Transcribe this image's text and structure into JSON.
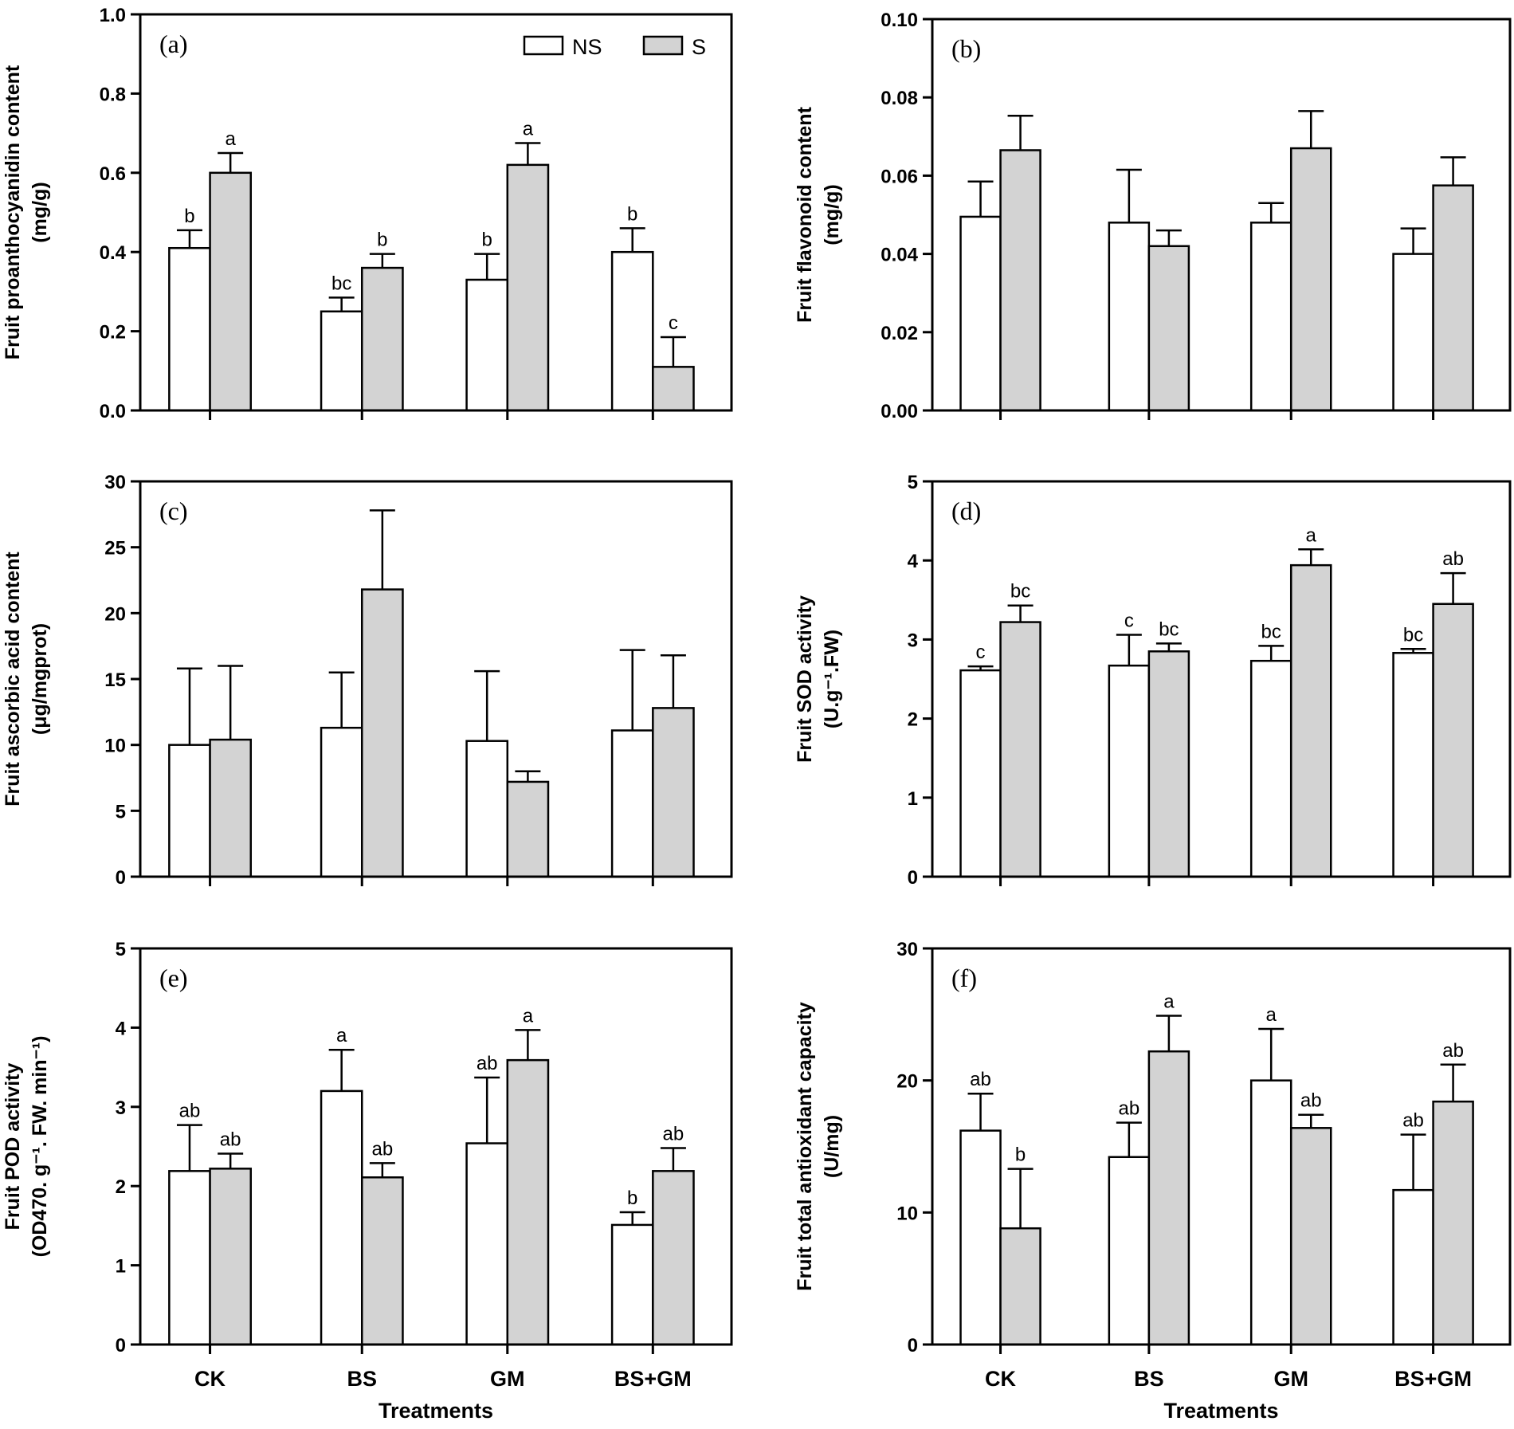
{
  "colors": {
    "NS": "#ffffff",
    "S": "#d3d3d3",
    "ink": "#000000"
  },
  "legend": {
    "entries": [
      "NS",
      "S"
    ]
  },
  "chart_data": [
    {
      "type": "bar",
      "panel": "(a)",
      "ylabel": [
        "Fruit proanthocyanidin content",
        "(mg/g)"
      ],
      "xlabel": "",
      "categories": [
        "CK",
        "BS",
        "GM",
        "BS+GM"
      ],
      "ylim": [
        0,
        1.0
      ],
      "yticks": [
        0.0,
        0.2,
        0.4,
        0.6,
        0.8,
        1.0
      ],
      "ytick_labels": [
        "0.0",
        "0.2",
        "0.4",
        "0.6",
        "0.8",
        "1.0"
      ],
      "show_category_labels": false,
      "legend": true,
      "series": [
        {
          "name": "NS",
          "values": [
            0.41,
            0.25,
            0.33,
            0.4
          ],
          "errors": [
            0.045,
            0.035,
            0.065,
            0.06
          ],
          "labels": [
            "b",
            "bc",
            "b",
            "b"
          ]
        },
        {
          "name": "S",
          "values": [
            0.6,
            0.36,
            0.62,
            0.11
          ],
          "errors": [
            0.05,
            0.035,
            0.055,
            0.075
          ],
          "labels": [
            "a",
            "b",
            "a",
            "c"
          ]
        }
      ]
    },
    {
      "type": "bar",
      "panel": "(b)",
      "ylabel": [
        "Fruit flavonoid content",
        "(mg/g)"
      ],
      "xlabel": "",
      "categories": [
        "CK",
        "BS",
        "GM",
        "BS+GM"
      ],
      "ylim": [
        0,
        0.1
      ],
      "yticks": [
        0.0,
        0.02,
        0.04,
        0.06,
        0.08,
        0.1
      ],
      "ytick_labels": [
        "0.00",
        "0.02",
        "0.04",
        "0.06",
        "0.08",
        "0.10"
      ],
      "show_category_labels": false,
      "legend": false,
      "series": [
        {
          "name": "NS",
          "values": [
            0.0495,
            0.048,
            0.048,
            0.04
          ],
          "errors": [
            0.009,
            0.0135,
            0.005,
            0.0065
          ],
          "labels": [
            "",
            "",
            "",
            ""
          ]
        },
        {
          "name": "S",
          "values": [
            0.0665,
            0.042,
            0.067,
            0.0575
          ],
          "errors": [
            0.0088,
            0.004,
            0.0095,
            0.0072
          ],
          "labels": [
            "",
            "",
            "",
            ""
          ]
        }
      ]
    },
    {
      "type": "bar",
      "panel": "(c)",
      "ylabel": [
        "Fruit ascorbic acid content",
        "(μg/mgprot)"
      ],
      "xlabel": "",
      "categories": [
        "CK",
        "BS",
        "GM",
        "BS+GM"
      ],
      "ylim": [
        0,
        30
      ],
      "yticks": [
        0,
        5,
        10,
        15,
        20,
        25,
        30
      ],
      "ytick_labels": [
        "0",
        "5",
        "10",
        "15",
        "20",
        "25",
        "30"
      ],
      "show_category_labels": false,
      "legend": false,
      "series": [
        {
          "name": "NS",
          "values": [
            10.0,
            11.3,
            10.3,
            11.1
          ],
          "errors": [
            5.8,
            4.2,
            5.3,
            6.1
          ],
          "labels": [
            "",
            "",
            "",
            ""
          ]
        },
        {
          "name": "S",
          "values": [
            10.4,
            21.8,
            7.2,
            12.8
          ],
          "errors": [
            5.6,
            6.0,
            0.8,
            4.0
          ],
          "labels": [
            "",
            "",
            "",
            ""
          ]
        }
      ]
    },
    {
      "type": "bar",
      "panel": "(d)",
      "ylabel": [
        "Fruit SOD activity",
        "(U.g⁻¹.FW)"
      ],
      "xlabel": "",
      "categories": [
        "CK",
        "BS",
        "GM",
        "BS+GM"
      ],
      "ylim": [
        0,
        5
      ],
      "yticks": [
        0,
        1,
        2,
        3,
        4,
        5
      ],
      "ytick_labels": [
        "0",
        "1",
        "2",
        "3",
        "4",
        "5"
      ],
      "show_category_labels": false,
      "legend": false,
      "series": [
        {
          "name": "NS",
          "values": [
            2.61,
            2.67,
            2.73,
            2.83
          ],
          "errors": [
            0.05,
            0.39,
            0.19,
            0.05
          ],
          "labels": [
            "c",
            "c",
            "bc",
            "bc"
          ]
        },
        {
          "name": "S",
          "values": [
            3.22,
            2.85,
            3.94,
            3.45
          ],
          "errors": [
            0.21,
            0.1,
            0.2,
            0.39
          ],
          "labels": [
            "bc",
            "bc",
            "a",
            "ab"
          ]
        }
      ]
    },
    {
      "type": "bar",
      "panel": "(e)",
      "ylabel": [
        "Fruit POD activity",
        "(OD470. g⁻¹. FW. min⁻¹)"
      ],
      "xlabel": "Treatments",
      "categories": [
        "CK",
        "BS",
        "GM",
        "BS+GM"
      ],
      "ylim": [
        0,
        5
      ],
      "yticks": [
        0,
        1,
        2,
        3,
        4,
        5
      ],
      "ytick_labels": [
        "0",
        "1",
        "2",
        "3",
        "4",
        "5"
      ],
      "show_category_labels": true,
      "legend": false,
      "series": [
        {
          "name": "NS",
          "values": [
            2.19,
            3.2,
            2.54,
            1.51
          ],
          "errors": [
            0.58,
            0.52,
            0.83,
            0.16
          ],
          "labels": [
            "ab",
            "a",
            "ab",
            "b"
          ]
        },
        {
          "name": "S",
          "values": [
            2.22,
            2.11,
            3.59,
            2.19
          ],
          "errors": [
            0.19,
            0.18,
            0.38,
            0.29
          ],
          "labels": [
            "ab",
            "ab",
            "a",
            "ab"
          ]
        }
      ]
    },
    {
      "type": "bar",
      "panel": "(f)",
      "ylabel": [
        "Fruit total antioxidant capacity",
        "(U/mg)"
      ],
      "xlabel": "Treatments",
      "categories": [
        "CK",
        "BS",
        "GM",
        "BS+GM"
      ],
      "ylim": [
        0,
        30
      ],
      "yticks": [
        0,
        10,
        20,
        30
      ],
      "ytick_labels": [
        "0",
        "10",
        "20",
        "30"
      ],
      "show_category_labels": true,
      "legend": false,
      "series": [
        {
          "name": "NS",
          "values": [
            16.2,
            14.2,
            20.0,
            11.7
          ],
          "errors": [
            2.8,
            2.6,
            3.9,
            4.2
          ],
          "labels": [
            "ab",
            "ab",
            "a",
            "ab"
          ]
        },
        {
          "name": "S",
          "values": [
            8.8,
            22.2,
            16.4,
            18.4
          ],
          "errors": [
            4.5,
            2.7,
            1.0,
            2.8
          ],
          "labels": [
            "b",
            "a",
            "ab",
            "ab"
          ]
        }
      ]
    }
  ]
}
